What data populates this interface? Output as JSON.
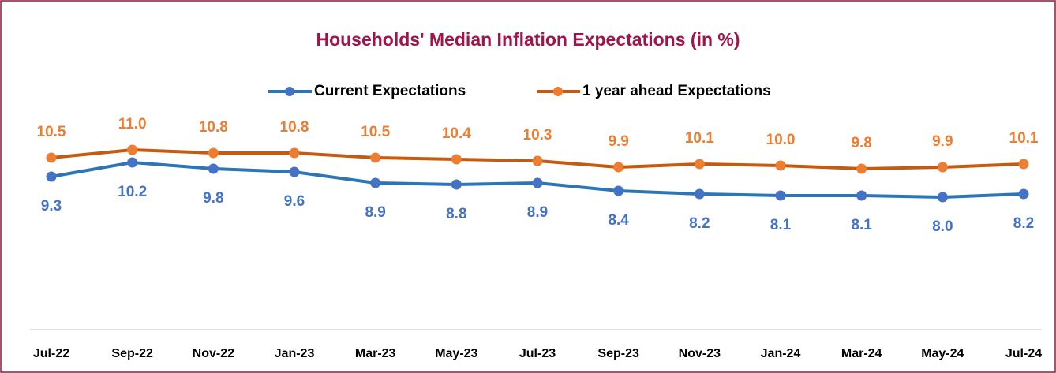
{
  "chart_data": {
    "type": "line",
    "title": "Households' Median Inflation Expectations (in %)",
    "categories": [
      "Jul-22",
      "Sep-22",
      "Nov-22",
      "Jan-23",
      "Mar-23",
      "May-23",
      "Jul-23",
      "Sep-23",
      "Nov-23",
      "Jan-24",
      "Mar-24",
      "May-24",
      "Jul-24"
    ],
    "series": [
      {
        "name": "Current Expectations",
        "color": "#2e75b6",
        "marker_color": "#4472c4",
        "values": [
          9.3,
          10.2,
          9.8,
          9.6,
          8.9,
          8.8,
          8.9,
          8.4,
          8.2,
          8.1,
          8.1,
          8.0,
          8.2
        ],
        "value_labels": [
          "9.3",
          "10.2",
          "9.8",
          "9.6",
          "8.9",
          "8.8",
          "8.9",
          "8.4",
          "8.2",
          "8.1",
          "8.1",
          "8.0",
          "8.2"
        ]
      },
      {
        "name": "1 year ahead Expectations",
        "color": "#c55a11",
        "marker_color": "#ed7d31",
        "values": [
          10.5,
          11.0,
          10.8,
          10.8,
          10.5,
          10.4,
          10.3,
          9.9,
          10.1,
          10.0,
          9.8,
          9.9,
          10.1
        ],
        "value_labels": [
          "10.5",
          "11.0",
          "10.8",
          "10.8",
          "10.5",
          "10.4",
          "10.3",
          "9.9",
          "10.1",
          "10.0",
          "9.8",
          "9.9",
          "10.1"
        ]
      }
    ],
    "ylim": [
      0,
      12
    ]
  }
}
